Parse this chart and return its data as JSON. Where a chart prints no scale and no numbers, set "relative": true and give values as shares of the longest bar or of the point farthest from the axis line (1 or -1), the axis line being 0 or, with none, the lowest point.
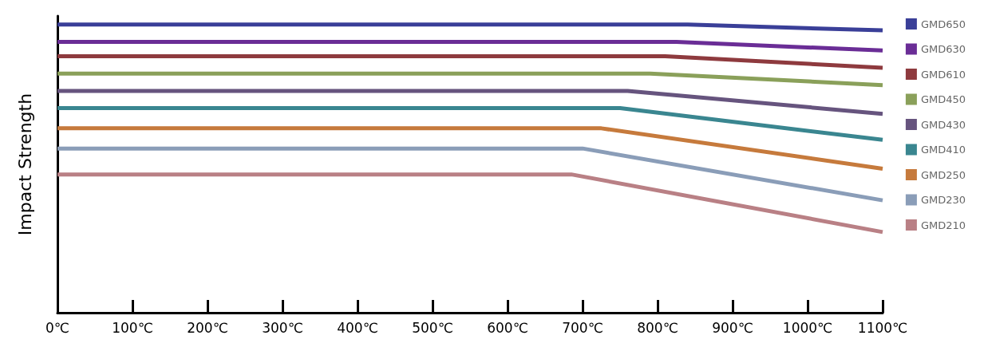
{
  "chart_data": {
    "type": "line",
    "ylabel": "Impact Strength",
    "relative": true,
    "xlim": [
      0,
      1100
    ],
    "xticks": [
      {
        "value": 0,
        "label": "0℃"
      },
      {
        "value": 100,
        "label": "100℃"
      },
      {
        "value": 200,
        "label": "200℃"
      },
      {
        "value": 300,
        "label": "300℃"
      },
      {
        "value": 400,
        "label": "400℃"
      },
      {
        "value": 500,
        "label": "500℃"
      },
      {
        "value": 600,
        "label": "600℃"
      },
      {
        "value": 700,
        "label": "700℃"
      },
      {
        "value": 800,
        "label": "800℃"
      },
      {
        "value": 900,
        "label": "900℃"
      },
      {
        "value": 1000,
        "label": "1000℃"
      },
      {
        "value": 1100,
        "label": "1100℃"
      }
    ],
    "series": [
      {
        "name": "GMD650",
        "color": "#3a3f98",
        "x": [
          0,
          840,
          1100
        ],
        "values": [
          1,
          1,
          0.98
        ]
      },
      {
        "name": "GMD630",
        "color": "#6a2d96",
        "x": [
          0,
          825,
          1100
        ],
        "values": [
          0.94,
          0.94,
          0.91
        ]
      },
      {
        "name": "GMD610",
        "color": "#8e3a3e",
        "x": [
          0,
          810,
          1100
        ],
        "values": [
          0.89,
          0.89,
          0.85
        ]
      },
      {
        "name": "GMD450",
        "color": "#8aa05a",
        "x": [
          0,
          790,
          1100
        ],
        "values": [
          0.83,
          0.83,
          0.79
        ]
      },
      {
        "name": "GMD430",
        "color": "#66547e",
        "x": [
          0,
          760,
          1100
        ],
        "values": [
          0.77,
          0.77,
          0.69
        ]
      },
      {
        "name": "GMD410",
        "color": "#3a8690",
        "x": [
          0,
          750,
          1100
        ],
        "values": [
          0.71,
          0.71,
          0.6
        ]
      },
      {
        "name": "GMD250",
        "color": "#c67a3c",
        "x": [
          0,
          725,
          1100
        ],
        "values": [
          0.64,
          0.64,
          0.5
        ]
      },
      {
        "name": "GMD230",
        "color": "#8a9db8",
        "x": [
          0,
          700,
          1100
        ],
        "values": [
          0.57,
          0.57,
          0.39
        ]
      },
      {
        "name": "GMD210",
        "color": "#b98085",
        "x": [
          0,
          685,
          1100
        ],
        "values": [
          0.48,
          0.48,
          0.28
        ]
      }
    ],
    "grid": false,
    "legend": "right",
    "marker": "none",
    "line_style": "solid"
  }
}
